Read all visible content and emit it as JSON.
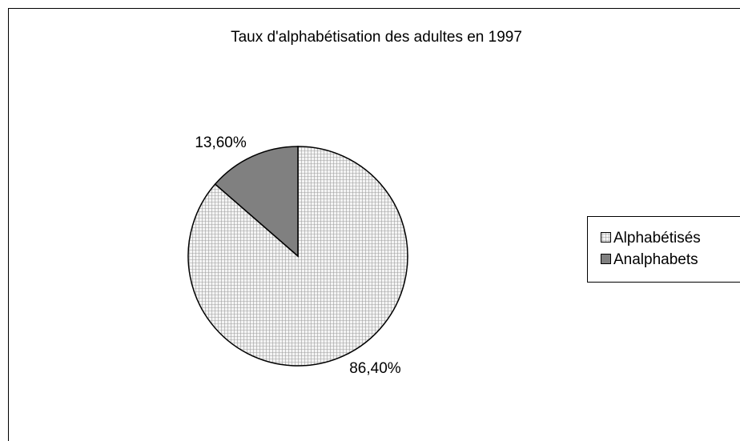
{
  "chart_data": {
    "type": "pie",
    "title": "Taux d'alphabétisation des adultes en 1997",
    "categories": [
      "Alphabétisés",
      "Analphabets"
    ],
    "values": [
      86.4,
      13.6
    ],
    "value_labels": [
      "86,40%",
      "13,60%"
    ],
    "colors": [
      "#f4f4f4",
      "#808080"
    ],
    "legend": "right"
  }
}
